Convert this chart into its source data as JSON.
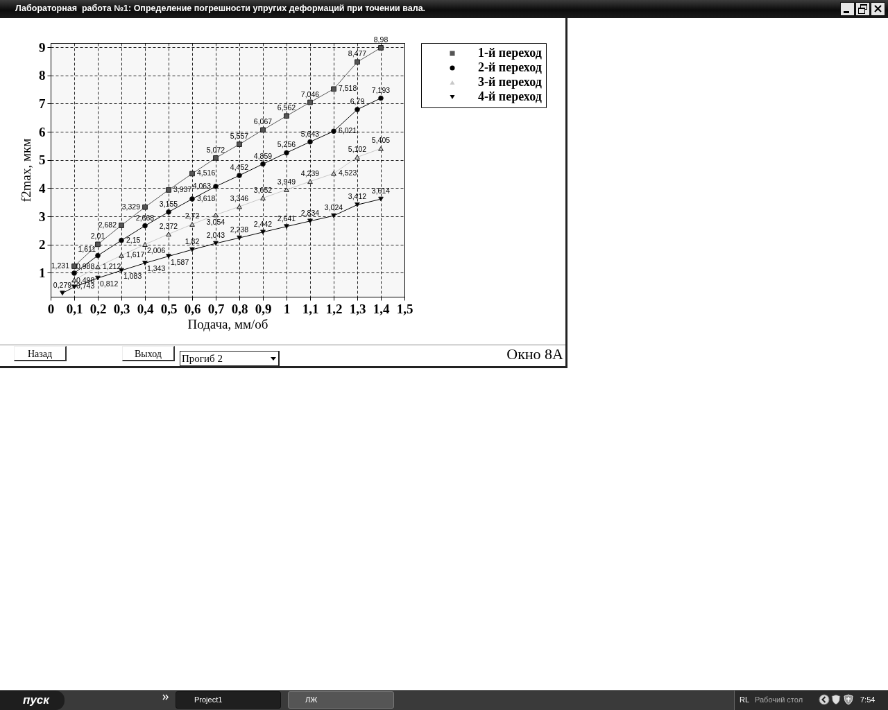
{
  "chart_data": {
    "type": "line",
    "title": "Лабораторная  работа №1: Определение погрешности упругих деформаций при точении вала.",
    "xlabel": "Подача, мм/об",
    "ylabel": "f2max, мкм",
    "x": [
      0.05,
      0.1,
      0.2,
      0.3,
      0.4,
      0.5,
      0.6,
      0.7,
      0.8,
      0.9,
      1,
      1.1,
      1.2,
      1.3,
      1.4
    ],
    "series": [
      {
        "name": "1-й переход",
        "color": "#555555",
        "marker": "square",
        "values": [
          null,
          1.231,
          2.01,
          2.682,
          3.329,
          3.937,
          4.516,
          5.072,
          5.557,
          6.067,
          6.562,
          7.046,
          7.518,
          8.477,
          8.98
        ],
        "value_labels": [
          null,
          "1,231",
          "2,01",
          "2,682",
          "3,329",
          "3,937",
          "4,516",
          "5,072",
          "5,557",
          "6,067",
          "6,562",
          "7,046",
          "7,518",
          "8,477",
          "8,98"
        ]
      },
      {
        "name": "2-й переход",
        "color": "#000000",
        "marker": "circle",
        "values": [
          null,
          0.988,
          1.611,
          2.15,
          2.668,
          3.155,
          3.618,
          4.063,
          4.452,
          4.859,
          5.256,
          5.643,
          6.021,
          6.79,
          7.193
        ],
        "value_labels": [
          null,
          "0,988",
          "1,611",
          "2,15",
          "2,668",
          "3,155",
          "3,618",
          "4,063",
          "4,452",
          "4,859",
          "5,256",
          "5,643",
          "6,021",
          "6,79",
          "7,193"
        ]
      },
      {
        "name": "3-й переход",
        "color": "#c8c8c8",
        "marker": "triangle",
        "values": [
          null,
          0.743,
          1.212,
          1.617,
          2.006,
          2.372,
          2.72,
          3.054,
          3.346,
          3.652,
          3.949,
          4.239,
          4.523,
          5.102,
          5.405
        ],
        "value_labels": [
          null,
          "0,743",
          "1,212",
          "1,617",
          "2,006",
          "2,372",
          "2,72",
          "3,054",
          "3,346",
          "3,652",
          "3,949",
          "4,239",
          "4,523",
          "5,102",
          "5,405"
        ]
      },
      {
        "name": "4-й переход",
        "color": "#000000",
        "marker": "triangle-down",
        "values": [
          0.279,
          0.498,
          0.812,
          1.083,
          1.343,
          1.587,
          1.82,
          2.043,
          2.238,
          2.442,
          2.641,
          2.834,
          3.024,
          3.412,
          3.614
        ],
        "value_labels": [
          "0,279",
          "0,498",
          "0,812",
          "1,083",
          "1,343",
          "1,587",
          "1,82",
          "2,043",
          "2,238",
          "2,442",
          "2,641",
          "2,834",
          "3,024",
          "3,412",
          "3,614"
        ]
      }
    ],
    "xlim": [
      0,
      1.5
    ],
    "xticks": [
      0,
      {
        "value": 0.1,
        "label": "0,1"
      },
      {
        "value": 0.2,
        "label": "0,2"
      },
      {
        "value": 0.3,
        "label": "0,3"
      },
      {
        "value": 0.4,
        "label": "0,4"
      },
      {
        "value": 0.5,
        "label": "0,5"
      },
      {
        "value": 0.6,
        "label": "0,6"
      },
      {
        "value": 0.7,
        "label": "0,7"
      },
      {
        "value": 0.8,
        "label": "0,8"
      },
      {
        "value": 0.9,
        "label": "0,9"
      },
      1,
      {
        "value": 1.1,
        "label": "1,1"
      },
      {
        "value": 1.2,
        "label": "1,2"
      },
      {
        "value": 1.3,
        "label": "1,3"
      },
      {
        "value": 1.4,
        "label": "1,4"
      },
      {
        "value": 1.5,
        "label": "1,5"
      }
    ],
    "ylim": [
      0.15,
      9.15
    ],
    "yticks": [
      1,
      2,
      3,
      4,
      5,
      6,
      7,
      8,
      9
    ],
    "grid": true,
    "legend": "top right",
    "annotations": [
      "Назад",
      "Выход",
      "Прогиб 2",
      "Окно 8А",
      "пуск",
      "Project1",
      "ЛЖ",
      "RL",
      "Рабочий стол",
      "7:54"
    ]
  }
}
